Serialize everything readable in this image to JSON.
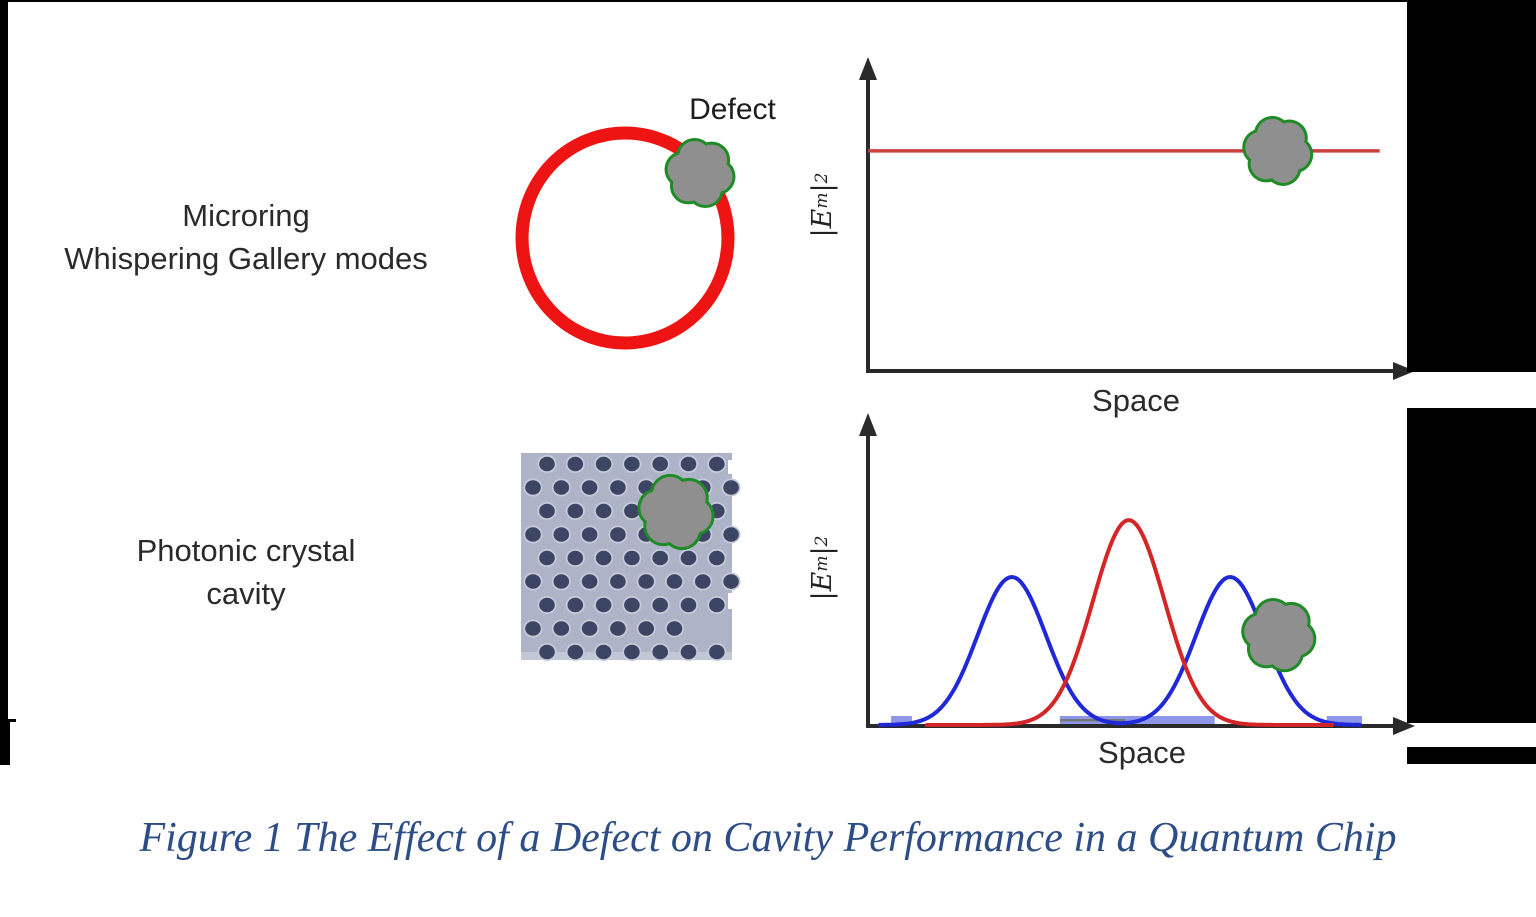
{
  "labels": {
    "row1_line1": "Microring",
    "row1_line2": "Whispering Gallery modes",
    "row2_line1": "Photonic crystal",
    "row2_line2": "cavity",
    "defect": "Defect",
    "xlabel": "Space",
    "ylabel": {
      "open_bar_E": "|E",
      "sub": "m",
      "close_bar": "|",
      "sup": "2"
    },
    "caption": "Figure 1 The Effect of a Defect on Cavity Performance in a Quantum Chip"
  },
  "colors": {
    "ring_red": "#ee1414",
    "plot_red_line": "#c94040",
    "plot_red_curve": "#d42626",
    "plot_blue": "#2028d8",
    "baseline_blue": "#8d96e8",
    "defect_gray": "#8f8f8f",
    "defect_green": "#1f8b26",
    "crystal_bg": "#aeb4c8",
    "crystal_hole": "#3d4565",
    "crystal_rim": "#c7cbd9",
    "axis_black": "#2a2a2a",
    "caption_blue": "#2d4d86"
  },
  "crystal": {
    "rows": 9,
    "even_row_holes": 7,
    "odd_row_holes": 8,
    "short_row_index": 7,
    "short_row_holes": 6
  },
  "chart_data": [
    {
      "type": "line",
      "title": "Microring whispering gallery mode intensity",
      "xlabel": "Space",
      "ylabel": "|E_m|^2",
      "x_range": [
        0,
        1
      ],
      "y_range": [
        0,
        1
      ],
      "grid": false,
      "ticks": "none",
      "series": [
        {
          "name": "whispering-gallery-mode",
          "color_key": "plot_red_line",
          "shape": "constant",
          "level": 0.714,
          "x_span": [
            0.004,
            0.962
          ]
        }
      ],
      "annotations": [
        {
          "name": "defect-blob",
          "x": 0.771,
          "y": 0.714,
          "radius_px": 31
        }
      ]
    },
    {
      "type": "line",
      "title": "Photonic crystal cavity mode intensities",
      "xlabel": "Space",
      "ylabel": "|E_m|^2",
      "x_range": [
        0,
        1
      ],
      "y_range": [
        0,
        1
      ],
      "grid": false,
      "ticks": "none",
      "series": [
        {
          "name": "localized-blue-modes",
          "color_key": "plot_blue",
          "shape": "gaussians",
          "peaks": [
            {
              "center": 0.273,
              "sigma": 0.064,
              "amp": 0.476
            },
            {
              "center": 0.682,
              "sigma": 0.064,
              "amp": 0.476
            }
          ],
          "x_span": [
            0.026,
            0.925
          ]
        },
        {
          "name": "localized-red-mode",
          "color_key": "plot_red_curve",
          "shape": "gaussians",
          "peaks": [
            {
              "center": 0.492,
              "sigma": 0.067,
              "amp": 0.659
            }
          ],
          "x_span": [
            0.114,
            0.878
          ]
        }
      ],
      "baseline_segments": [
        [
          0.047,
          0.086
        ],
        [
          0.363,
          0.653
        ],
        [
          0.863,
          0.929
        ]
      ],
      "annotations": [
        {
          "name": "defect-blob",
          "x": 0.773,
          "y": 0.289,
          "radius_px": 33
        }
      ]
    }
  ]
}
